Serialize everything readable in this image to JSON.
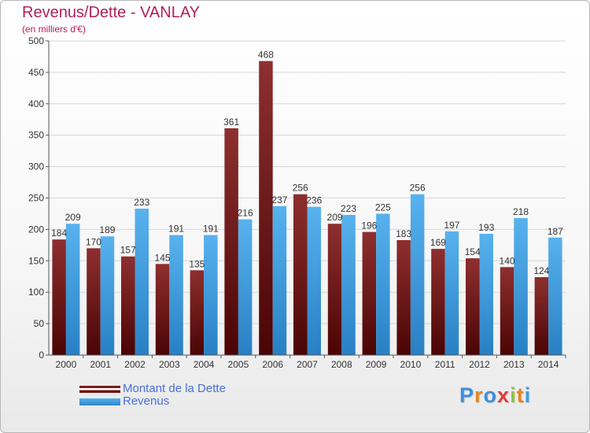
{
  "title": "Revenus/Dette - VANLAY",
  "subtitle": "(en milliers d'€)",
  "colors": {
    "dette": "#7a1c1c",
    "revenus": "#3d9ee3",
    "title": "#b0205a"
  },
  "legend": [
    {
      "label": "Montant de la Dette",
      "color": "#6e1414"
    },
    {
      "label": "Revenus",
      "color": "#3d9ee3"
    }
  ],
  "logo": {
    "text": "Proxiti"
  },
  "chart_data": {
    "type": "bar",
    "categories": [
      "2000",
      "2001",
      "2002",
      "2003",
      "2004",
      "2005",
      "2006",
      "2007",
      "2008",
      "2009",
      "2010",
      "2011",
      "2012",
      "2013",
      "2014"
    ],
    "series": [
      {
        "name": "Montant de la Dette",
        "values": [
          184,
          170,
          157,
          145,
          135,
          361,
          468,
          256,
          209,
          196,
          183,
          169,
          154,
          140,
          124
        ]
      },
      {
        "name": "Revenus",
        "values": [
          209,
          189,
          233,
          191,
          191,
          216,
          237,
          236,
          223,
          225,
          256,
          197,
          193,
          218,
          187
        ]
      }
    ],
    "ylim": [
      0,
      500
    ],
    "yticks": [
      0,
      50,
      100,
      150,
      200,
      250,
      300,
      350,
      400,
      450,
      500
    ],
    "grid": true,
    "legend_position": "bottom-left"
  }
}
